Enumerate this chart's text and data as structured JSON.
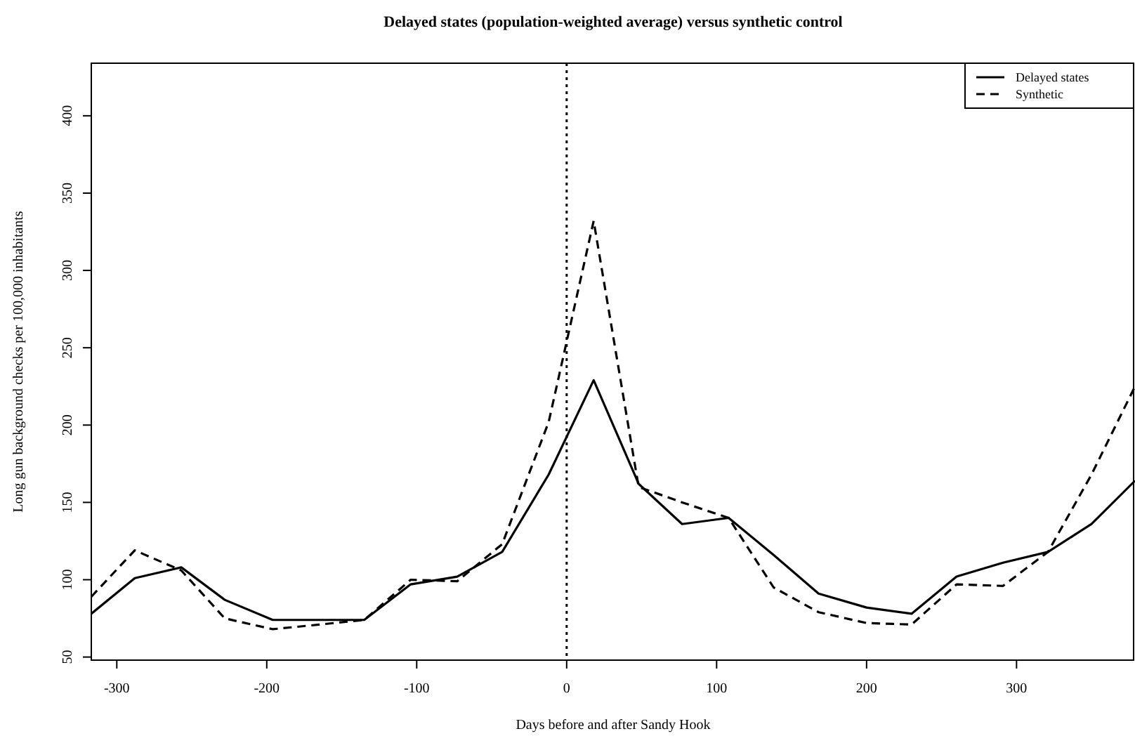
{
  "chart_data": {
    "type": "line",
    "title": "Delayed states (population-weighted average) versus synthetic control",
    "xlabel": "Days before and after Sandy Hook",
    "ylabel": "Long gun background checks per 100,000 inhabitants",
    "x": [
      -317,
      -288,
      -257,
      -228,
      -196,
      -165,
      -135,
      -104,
      -73,
      -43,
      -12,
      18,
      48,
      77,
      108,
      138,
      168,
      200,
      230,
      260,
      291,
      321,
      350,
      379
    ],
    "series": [
      {
        "name": "Delayed states",
        "color": "#000000",
        "line_style": "solid",
        "values": [
          78,
          101,
          108,
          87,
          74,
          74,
          74,
          97,
          102,
          118,
          168,
          229,
          162,
          136,
          140,
          116,
          91,
          82,
          78,
          102,
          111,
          118,
          136,
          164
        ]
      },
      {
        "name": "Synthetic",
        "color": "#000000",
        "line_style": "dashed",
        "values": [
          89,
          119,
          106,
          75,
          68,
          71,
          74,
          100,
          99,
          123,
          202,
          332,
          160,
          150,
          140,
          95,
          79,
          72,
          71,
          97,
          96,
          118,
          168,
          225
        ]
      }
    ],
    "xlim": [
      -317,
      379
    ],
    "ylim": [
      48,
      434
    ],
    "xticks": [
      -300,
      -200,
      -100,
      0,
      100,
      200,
      300
    ],
    "yticks": [
      50,
      100,
      150,
      200,
      250,
      300,
      350,
      400
    ],
    "ref_lines": [
      {
        "axis": "x",
        "value": 0,
        "line_style": "dotted",
        "color": "#000000"
      }
    ],
    "legend": "top right",
    "grid": false,
    "marker": "none"
  }
}
